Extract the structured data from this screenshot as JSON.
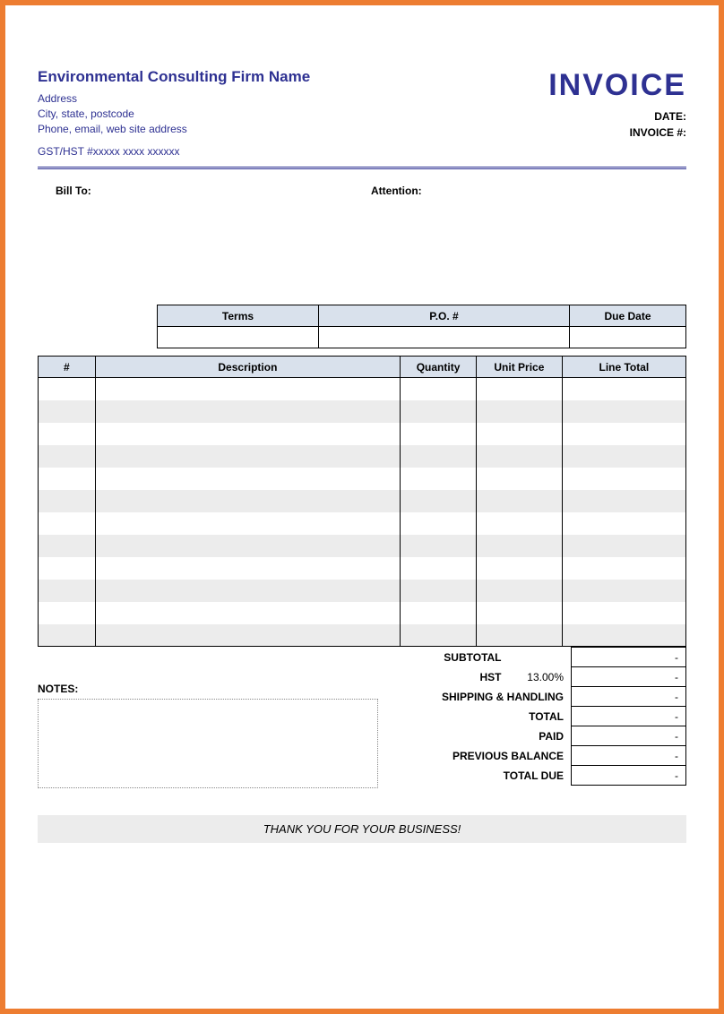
{
  "header": {
    "firm_name": "Environmental Consulting Firm Name",
    "address_line1": "Address",
    "address_line2": "City, state, postcode",
    "address_line3": "Phone, email, web site address",
    "gst_line": "GST/HST #xxxxx xxxx xxxxxx",
    "invoice_title": "INVOICE",
    "date_label": "DATE:",
    "invoice_num_label": "INVOICE #:"
  },
  "billto": {
    "label": "Bill To:",
    "attention_label": "Attention:"
  },
  "terms": {
    "col1": "Terms",
    "col2": "P.O. #",
    "col3": "Due Date"
  },
  "items": {
    "cols": {
      "num": "#",
      "desc": "Description",
      "qty": "Quantity",
      "unit": "Unit Price",
      "line": "Line Total"
    },
    "row_count": 12
  },
  "totals": {
    "subtotal_label": "SUBTOTAL",
    "hst_label": "HST",
    "hst_rate": "13.00%",
    "shipping_label": "SHIPPING & HANDLING",
    "total_label": "TOTAL",
    "paid_label": "PAID",
    "prev_label": "PREVIOUS BALANCE",
    "due_label": "TOTAL DUE",
    "dash": "-"
  },
  "notes_label": "NOTES:",
  "thankyou": "THANK YOU FOR YOUR BUSINESS!",
  "colors": {
    "accent": "#2e3192",
    "border": "#ed7d31",
    "header_bg": "#d9e1ec",
    "stripe": "#ececec"
  }
}
